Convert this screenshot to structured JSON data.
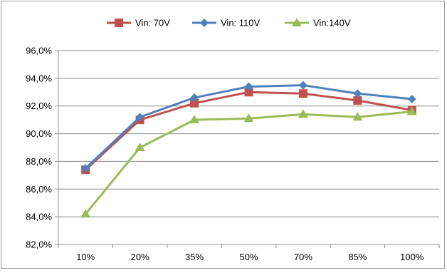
{
  "chart_data": {
    "type": "line",
    "categories": [
      "10%",
      "20%",
      "35%",
      "50%",
      "70%",
      "85%",
      "100%"
    ],
    "series": [
      {
        "name": "Vin: 70V",
        "color": "#c0504d",
        "marker": "square",
        "values": [
          87.4,
          91.0,
          92.2,
          93.0,
          92.9,
          92.4,
          91.7
        ]
      },
      {
        "name": "Vin: 110V",
        "color": "#4f81bd",
        "marker": "diamond",
        "values": [
          87.5,
          91.2,
          92.6,
          93.4,
          93.5,
          92.9,
          92.5
        ]
      },
      {
        "name": "Vin:140V",
        "color": "#9bbb59",
        "marker": "triangle",
        "values": [
          84.2,
          89.0,
          91.0,
          91.1,
          91.4,
          91.2,
          91.6
        ]
      }
    ],
    "ylim": [
      82,
      96
    ],
    "yticks": [
      "82,0%",
      "84,0%",
      "86,0%",
      "88,0%",
      "90,0%",
      "92,0%",
      "94,0%",
      "96,0%"
    ],
    "grid": true,
    "legend": "top"
  }
}
